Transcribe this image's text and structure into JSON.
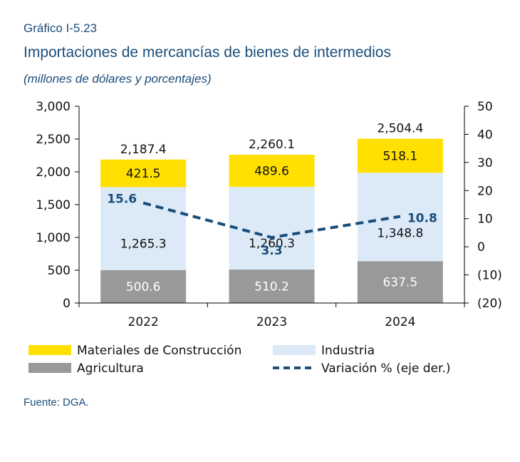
{
  "header": {
    "label": "Gráfico I-5.23",
    "title": "Importaciones de mercancías de bienes de intermedios",
    "subtitle": "(millones de dólares y porcentajes)"
  },
  "source": "Fuente: DGA.",
  "chart_data": {
    "type": "bar",
    "stacked": true,
    "categories": [
      "2022",
      "2023",
      "2024"
    ],
    "series": [
      {
        "name": "Agricultura",
        "values": [
          500.6,
          510.2,
          637.5
        ],
        "labels": [
          "500.6",
          "510.2",
          "637.5"
        ],
        "color": "#999999",
        "label_color": "#ffffff"
      },
      {
        "name": "Industria",
        "values": [
          1265.3,
          1260.3,
          1348.8
        ],
        "labels": [
          "1,265.3",
          "1,260.3",
          "1,348.8"
        ],
        "color": "#dceaf7",
        "label_color": "#111111"
      },
      {
        "name": "Materiales de Construcción",
        "values": [
          421.5,
          489.6,
          518.1
        ],
        "labels": [
          "421.5",
          "489.6",
          "518.1"
        ],
        "color": "#ffe000",
        "label_color": "#111111"
      }
    ],
    "totals": [
      2187.4,
      2260.1,
      2504.4
    ],
    "total_labels": [
      "2,187.4",
      "2,260.1",
      "2,504.4"
    ],
    "line": {
      "name": "Variación % (eje der.)",
      "values": [
        15.6,
        3.3,
        10.8
      ],
      "labels": [
        "15.6",
        "3.3",
        "10.8"
      ],
      "color": "#1a4d7a",
      "axis": "right",
      "style": "dashed"
    },
    "y_left": {
      "min": 0,
      "max": 3000,
      "ticks": [
        "3,000",
        "2,500",
        "2,000",
        "1,500",
        "1,000",
        "500",
        "0"
      ]
    },
    "y_right": {
      "min": -20,
      "max": 50,
      "ticks": [
        "50",
        "40",
        "30",
        "20",
        "10",
        "0",
        "(10)",
        "(20)"
      ]
    },
    "legend": {
      "placement": "bottom",
      "items": [
        "Materiales de Construcción",
        "Industria",
        "Agricultura",
        "Variación % (eje der.)"
      ]
    },
    "grid": false
  }
}
